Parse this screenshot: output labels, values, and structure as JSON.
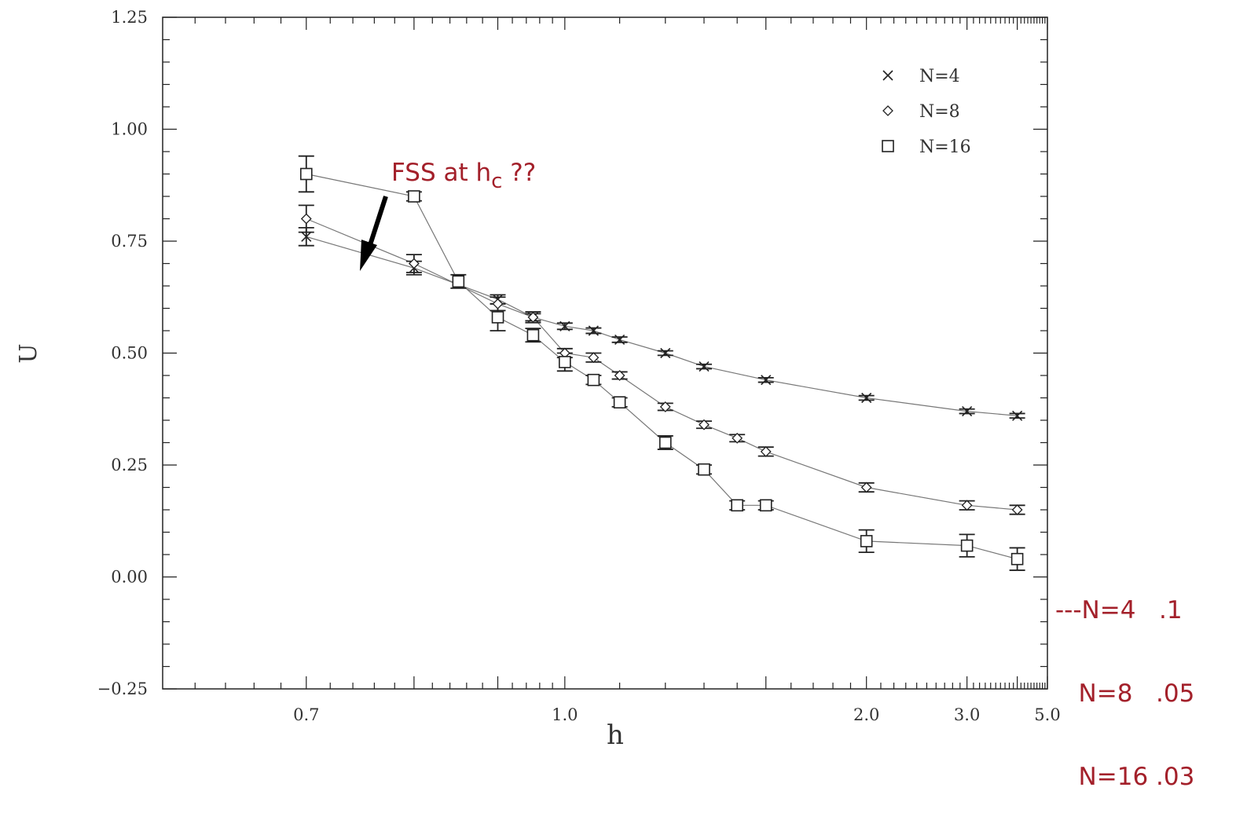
{
  "chart_data": {
    "type": "scatter",
    "title": "",
    "xlabel": "h",
    "ylabel": "U",
    "x_scale": "reciprocal",
    "xlim": [
      0.6,
      5.0
    ],
    "ylim": [
      -0.25,
      1.25
    ],
    "x_ticks": [
      0.7,
      1.0,
      2.0,
      3.0,
      5.0
    ],
    "x_tick_labels": [
      "0.7",
      "1.0",
      "2.0",
      "3.0",
      "5.0"
    ],
    "y_ticks": [
      -0.25,
      0.0,
      0.25,
      0.5,
      0.75,
      1.0,
      1.25
    ],
    "y_tick_labels": [
      "−0.25",
      "0.00",
      "0.25",
      "0.50",
      "0.75",
      "1.00",
      "1.25"
    ],
    "grid": false,
    "legend_position": "top-right",
    "series": [
      {
        "name": "N=4",
        "marker": "x",
        "x": [
          0.7,
          0.8,
          0.9,
          0.95,
          1.0,
          1.05,
          1.1,
          1.2,
          1.3,
          1.5,
          2.0,
          3.0,
          4.0
        ],
        "y": [
          0.76,
          0.69,
          0.62,
          0.58,
          0.56,
          0.55,
          0.53,
          0.5,
          0.47,
          0.44,
          0.4,
          0.37,
          0.36
        ],
        "err": [
          0.02,
          0.015,
          0.01,
          0.008,
          0.007,
          0.006,
          0.006,
          0.005,
          0.005,
          0.005,
          0.005,
          0.005,
          0.005
        ]
      },
      {
        "name": "N=8",
        "marker": "diamond",
        "x": [
          0.7,
          0.8,
          0.9,
          0.95,
          1.0,
          1.05,
          1.1,
          1.2,
          1.3,
          1.4,
          1.5,
          2.0,
          3.0,
          4.0
        ],
        "y": [
          0.8,
          0.7,
          0.61,
          0.58,
          0.5,
          0.49,
          0.45,
          0.38,
          0.34,
          0.31,
          0.28,
          0.2,
          0.16,
          0.15
        ],
        "err": [
          0.03,
          0.02,
          0.015,
          0.012,
          0.01,
          0.01,
          0.008,
          0.008,
          0.008,
          0.008,
          0.01,
          0.01,
          0.01,
          0.01
        ]
      },
      {
        "name": "N=16",
        "marker": "square",
        "x": [
          0.7,
          0.8,
          0.85,
          0.9,
          0.95,
          1.0,
          1.05,
          1.1,
          1.2,
          1.3,
          1.4,
          1.5,
          2.0,
          3.0,
          4.0
        ],
        "y": [
          0.9,
          0.85,
          0.66,
          0.58,
          0.54,
          0.48,
          0.44,
          0.39,
          0.3,
          0.24,
          0.16,
          0.16,
          0.08,
          0.07,
          0.04
        ],
        "err": [
          0.04,
          0.01,
          0.015,
          0.03,
          0.015,
          0.02,
          0.01,
          0.01,
          0.015,
          0.01,
          0.01,
          0.01,
          0.025,
          0.025,
          0.025
        ]
      }
    ],
    "annotations": {
      "arrow_text_main": "FSS at h",
      "arrow_text_sub": "c",
      "arrow_text_tail": " ??",
      "side_notes": [
        "---N=4   .1",
        "   N=8   .05",
        "   N=16 .03"
      ]
    }
  }
}
